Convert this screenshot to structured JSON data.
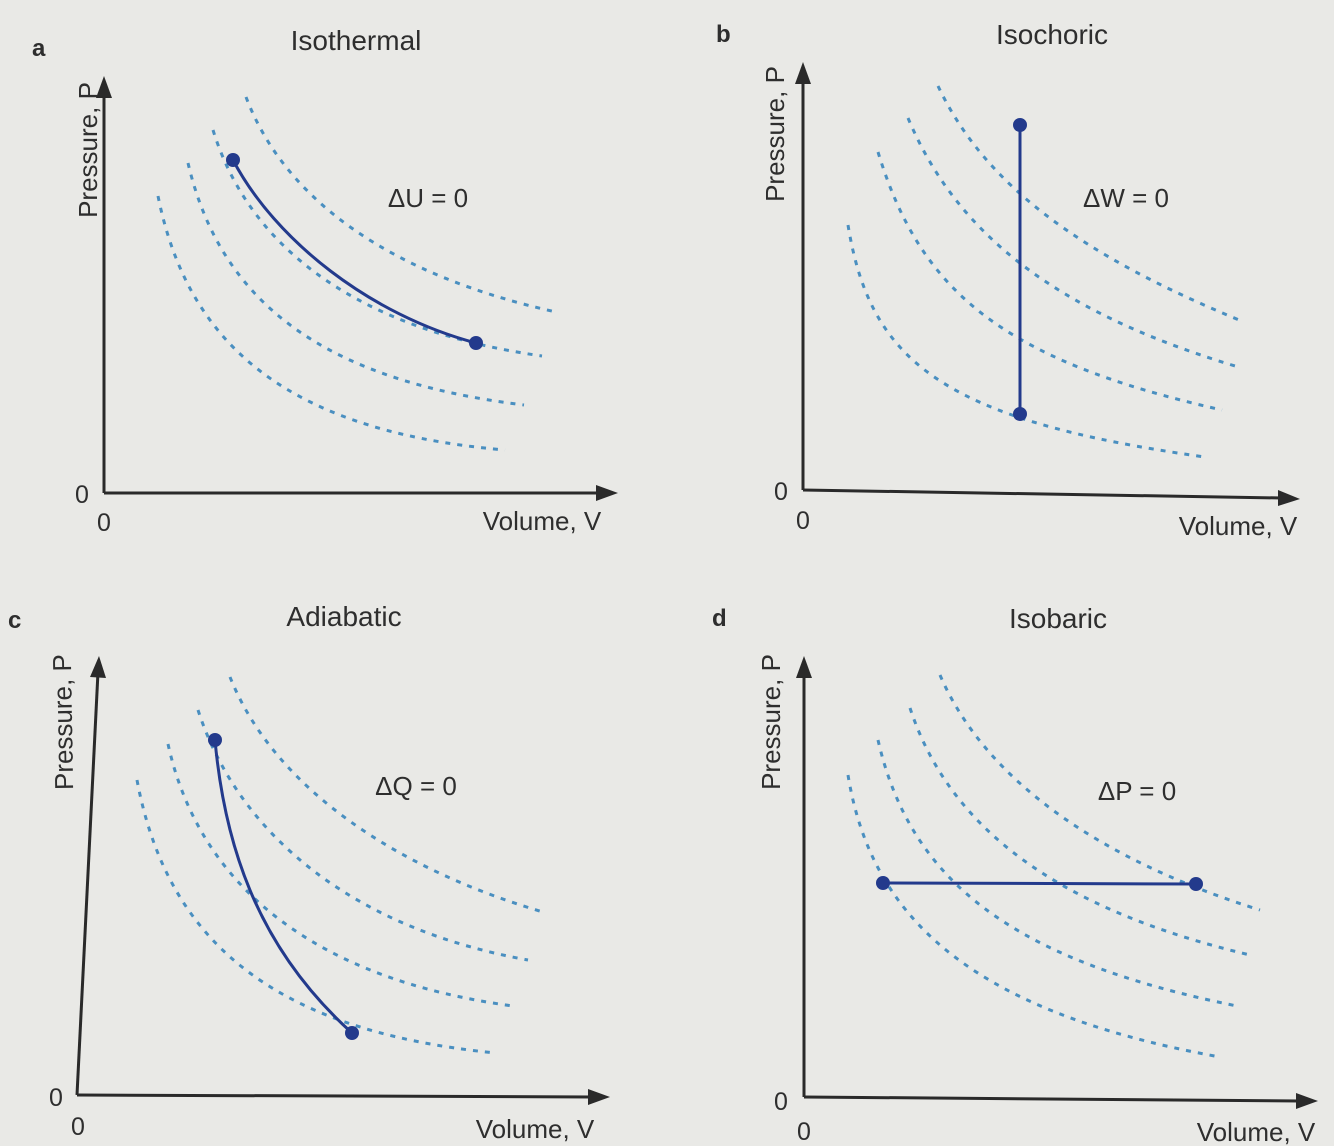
{
  "panels": [
    {
      "id": "a",
      "letter": "a",
      "title": "Isothermal",
      "equation": "ΔU = 0",
      "y_label": "Pressure, P",
      "x_label": "Volume, V",
      "y_origin": "0",
      "x_origin": "0",
      "process": "along an isotherm from high pressure / low volume to low pressure / high volume"
    },
    {
      "id": "b",
      "letter": "b",
      "title": "Isochoric",
      "equation": "ΔW = 0",
      "y_label": "Pressure, P",
      "x_label": "Volume, V",
      "y_origin": "0",
      "x_origin": "0",
      "process": "vertical line at constant volume"
    },
    {
      "id": "c",
      "letter": "c",
      "title": "Adiabatic",
      "equation": "ΔQ = 0",
      "y_label": "Pressure, P",
      "x_label": "Volume, V",
      "y_origin": "0",
      "x_origin": "0",
      "process": "steep curve crossing isotherms"
    },
    {
      "id": "d",
      "letter": "d",
      "title": "Isobaric",
      "equation": "ΔP = 0",
      "y_label": "Pressure, P",
      "x_label": "Volume, V",
      "y_origin": "0",
      "x_origin": "0",
      "process": "horizontal line at constant pressure"
    }
  ],
  "colors": {
    "isotherm": "#4a8fc0",
    "process": "#233a8c",
    "axis": "#2a2a2a",
    "background": "#e9e9e6"
  }
}
